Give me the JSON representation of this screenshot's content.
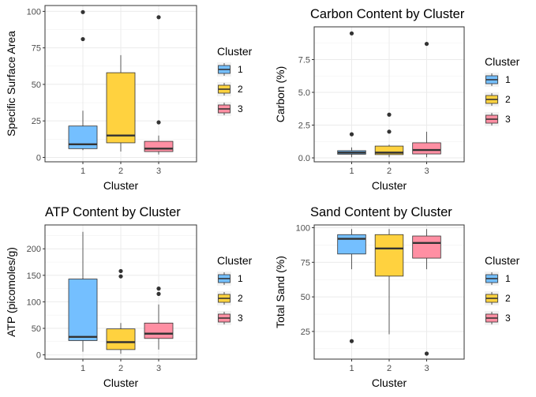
{
  "chart_data": [
    {
      "type": "box",
      "title": "",
      "xlabel": "Cluster",
      "ylabel": "Specific Surface Area",
      "categories": [
        "1",
        "2",
        "3"
      ],
      "ylim": [
        -3,
        104
      ],
      "yticks": [
        0,
        25,
        50,
        75,
        100
      ],
      "grid": true,
      "legend": {
        "title": "Cluster",
        "position": "right",
        "labels": [
          "1",
          "2",
          "3"
        ]
      },
      "colors": [
        "#74BFFF",
        "#FFD23F",
        "#FF8FA3"
      ],
      "boxes": [
        {
          "q1": 6,
          "median": 9,
          "q3": 21.5,
          "whisker_low": 5,
          "whisker_high": 32,
          "outliers": [
            81,
            99.5
          ]
        },
        {
          "q1": 10,
          "median": 15,
          "q3": 58,
          "whisker_low": 4,
          "whisker_high": 70,
          "outliers": []
        },
        {
          "q1": 4,
          "median": 6,
          "q3": 11,
          "whisker_low": 2,
          "whisker_high": 15,
          "outliers": [
            24,
            96
          ]
        }
      ]
    },
    {
      "type": "box",
      "title": "Carbon Content by Cluster",
      "xlabel": "Cluster",
      "ylabel": "Carbon (%)",
      "categories": [
        "1",
        "2",
        "3"
      ],
      "ylim": [
        -0.3,
        10
      ],
      "yticks": [
        0,
        2.5,
        5,
        7.5
      ],
      "yticklabels": [
        "0.0",
        "2.5",
        "5.0",
        "7.5"
      ],
      "grid": true,
      "legend": {
        "title": "Cluster",
        "position": "right",
        "labels": [
          "1",
          "2",
          "3"
        ]
      },
      "colors": [
        "#74BFFF",
        "#FFD23F",
        "#FF8FA3"
      ],
      "boxes": [
        {
          "q1": 0.28,
          "median": 0.4,
          "q3": 0.55,
          "whisker_low": 0.05,
          "whisker_high": 0.8,
          "outliers": [
            1.8,
            9.5
          ]
        },
        {
          "q1": 0.25,
          "median": 0.4,
          "q3": 0.9,
          "whisker_low": 0.05,
          "whisker_high": 1.0,
          "outliers": [
            2.0,
            3.3
          ]
        },
        {
          "q1": 0.3,
          "median": 0.6,
          "q3": 1.15,
          "whisker_low": 0.05,
          "whisker_high": 2.0,
          "outliers": [
            8.7
          ]
        }
      ]
    },
    {
      "type": "box",
      "title": "ATP Content by Cluster",
      "xlabel": "Cluster",
      "ylabel": "ATP (picomoles/g)",
      "categories": [
        "1",
        "2",
        "3"
      ],
      "ylim": [
        -8,
        245
      ],
      "yticks": [
        0,
        50,
        100,
        150,
        200
      ],
      "grid": true,
      "legend": {
        "title": "Cluster",
        "position": "right",
        "labels": [
          "1",
          "2",
          "3"
        ]
      },
      "colors": [
        "#74BFFF",
        "#FFD23F",
        "#FF8FA3"
      ],
      "boxes": [
        {
          "q1": 27,
          "median": 34,
          "q3": 143,
          "whisker_low": 6,
          "whisker_high": 232,
          "outliers": []
        },
        {
          "q1": 10,
          "median": 24,
          "q3": 49,
          "whisker_low": 2,
          "whisker_high": 60,
          "outliers": [
            148,
            158
          ]
        },
        {
          "q1": 31,
          "median": 40,
          "q3": 60,
          "whisker_low": 10,
          "whisker_high": 95,
          "outliers": [
            115,
            125
          ]
        }
      ]
    },
    {
      "type": "box",
      "title": "Sand Content by Cluster",
      "xlabel": "Cluster",
      "ylabel": "Total Sand (%)",
      "categories": [
        "1",
        "2",
        "3"
      ],
      "ylim": [
        5,
        102
      ],
      "yticks": [
        25,
        50,
        75,
        100
      ],
      "grid": true,
      "legend": {
        "title": "Cluster",
        "position": "right",
        "labels": [
          "1",
          "2",
          "3"
        ]
      },
      "colors": [
        "#74BFFF",
        "#FFD23F",
        "#FF8FA3"
      ],
      "boxes": [
        {
          "q1": 81,
          "median": 92,
          "q3": 95,
          "whisker_low": 70,
          "whisker_high": 99,
          "outliers": [
            18
          ]
        },
        {
          "q1": 65,
          "median": 85,
          "q3": 95,
          "whisker_low": 23,
          "whisker_high": 99,
          "outliers": []
        },
        {
          "q1": 78,
          "median": 89,
          "q3": 94,
          "whisker_low": 70,
          "whisker_high": 99,
          "outliers": [
            9
          ]
        }
      ]
    }
  ]
}
